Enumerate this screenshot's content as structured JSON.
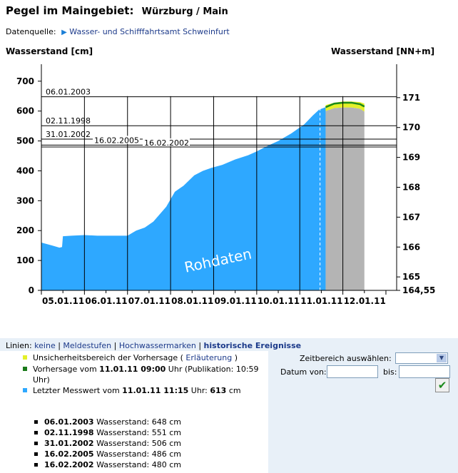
{
  "header": {
    "title": "Pegel im Maingebiet:",
    "location": "Würzburg / Main",
    "source_label": "Datenquelle:",
    "source_link": "Wasser- und Schifffahrtsamt Schweinfurt"
  },
  "chart_data": {
    "type": "area",
    "title": "",
    "ylabel_left": "Wasserstand [cm]",
    "ylabel_right": "Wasserstand [NN+m]",
    "watermark": "Rohdaten",
    "ylim": [
      0,
      740
    ],
    "yticks_left": [
      0,
      100,
      200,
      300,
      400,
      500,
      600,
      700
    ],
    "yticks_right": [
      "164,55",
      "165",
      "166",
      "167",
      "168",
      "169",
      "170",
      "171"
    ],
    "yticks_right_values": [
      0,
      45,
      145,
      245,
      345,
      445,
      545,
      645
    ],
    "xlim": [
      0,
      8
    ],
    "xticks": [
      "05.01.11",
      "06.01.11",
      "07.01.11",
      "08.01.11",
      "09.01.11",
      "10.01.11",
      "11.01.11",
      "12.01.11"
    ],
    "measured": {
      "x": [
        0,
        0.25,
        0.42,
        0.48,
        0.5,
        0.7,
        1.0,
        1.3,
        1.6,
        2.0,
        2.2,
        2.4,
        2.6,
        2.9,
        3.1,
        3.3,
        3.55,
        3.75,
        3.95,
        4.2,
        4.5,
        4.8,
        5.0,
        5.2,
        5.5,
        5.8,
        6.1,
        6.3,
        6.45,
        6.6
      ],
      "y": [
        160,
        150,
        143,
        145,
        181,
        183,
        185,
        183,
        183,
        183,
        200,
        210,
        230,
        280,
        330,
        350,
        385,
        400,
        410,
        420,
        438,
        452,
        465,
        480,
        500,
        525,
        555,
        585,
        605,
        613
      ]
    },
    "forecast": {
      "x": [
        6.6,
        6.8,
        7.0,
        7.2,
        7.4,
        7.5
      ],
      "y": [
        613,
        625,
        628,
        628,
        623,
        615
      ]
    },
    "uncertainty_upper": [
      620,
      628,
      632,
      632,
      630,
      625
    ],
    "uncertainty_lower": [
      600,
      610,
      612,
      612,
      608,
      598
    ],
    "now_x": 6.47,
    "forecast_start_x": 6.6,
    "forecast_end_x": 7.5,
    "events": [
      {
        "label": "06.01.2003",
        "value": 648
      },
      {
        "label": "02.11.1998",
        "value": 551
      },
      {
        "label": "31.01.2002",
        "value": 506
      },
      {
        "label": "16.02.2005",
        "value": 486
      },
      {
        "label": "16.02.2002",
        "value": 480
      }
    ],
    "colors": {
      "measured": "#2ea8ff",
      "forecast_shade": "#b4b4b4",
      "forecast_line": "#1a8a1a",
      "uncertainty": "#e4f028"
    }
  },
  "lines_bar": {
    "prefix": "Linien:",
    "items": [
      "keine",
      "Meldestufen",
      "Hochwassermarken",
      "historische Ereignisse"
    ]
  },
  "legend": {
    "uncertainty_text": "Unsicherheitsbereich der Vorhersage (",
    "uncertainty_link": "Erläuterung",
    "uncertainty_close": ")",
    "forecast_text": "Vorhersage vom",
    "forecast_date": "11.01.11 09:00",
    "forecast_rest_1": "Uhr (Publikation: 10:59",
    "forecast_rest_2": "Uhr)",
    "last_text": "Letzter Messwert vom",
    "last_date": "11.01.11 11:15",
    "last_mid": "Uhr:",
    "last_value": "613",
    "last_unit": "cm"
  },
  "events_list": [
    {
      "date": "06.01.2003",
      "text": "Wasserstand: 648 cm"
    },
    {
      "date": "02.11.1998",
      "text": "Wasserstand: 551 cm"
    },
    {
      "date": "31.01.2002",
      "text": "Wasserstand: 506 cm"
    },
    {
      "date": "16.02.2005",
      "text": "Wasserstand: 486 cm"
    },
    {
      "date": "16.02.2002",
      "text": "Wasserstand: 480 cm"
    }
  ],
  "form": {
    "range_label": "Zeitbereich auswählen:",
    "from_label": "Datum von:",
    "to_label": "bis:"
  }
}
